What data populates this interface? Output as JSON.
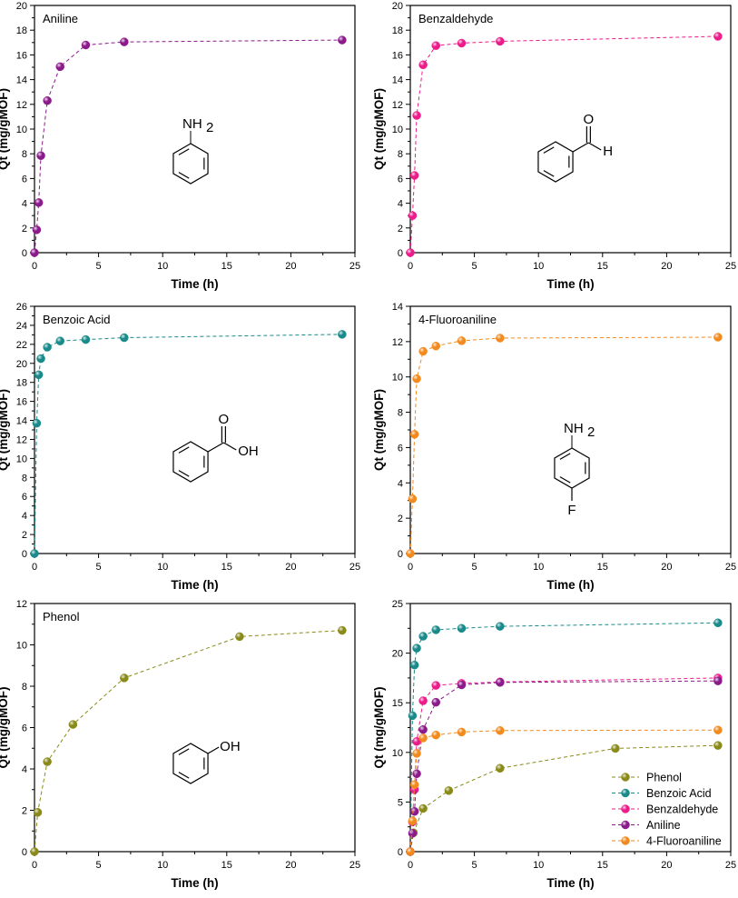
{
  "colors": {
    "Aniline": "#8b1a8b",
    "Benzaldehyde": "#ec1c8a",
    "Benzoic Acid": "#1a8a8a",
    "4-Fluoroaniline": "#f28a1e",
    "Phenol": "#8a8a1a"
  },
  "chart_data": [
    {
      "type": "scatter",
      "title": "Aniline",
      "xlabel": "Time (h)",
      "ylabel": "Qt (mg/gMOF)",
      "xlim": [
        0,
        25
      ],
      "ylim": [
        0,
        20
      ],
      "xticks": [
        0,
        5,
        10,
        15,
        20,
        25
      ],
      "yticks": [
        0,
        2,
        4,
        6,
        8,
        10,
        12,
        14,
        16,
        18,
        20
      ],
      "molecule": "aniline",
      "molecule_labels": [
        "NH",
        "2"
      ],
      "series": [
        {
          "name": "Aniline",
          "x": [
            0,
            0.17,
            0.33,
            0.5,
            1,
            2,
            4,
            7,
            24
          ],
          "y": [
            0,
            1.85,
            4.05,
            7.85,
            12.3,
            15.05,
            16.8,
            17.05,
            17.2
          ]
        }
      ]
    },
    {
      "type": "scatter",
      "title": "Benzaldehyde",
      "xlabel": "Time (h)",
      "ylabel": "Qt (mg/gMOF)",
      "xlim": [
        0,
        25
      ],
      "ylim": [
        0,
        20
      ],
      "xticks": [
        0,
        5,
        10,
        15,
        20,
        25
      ],
      "yticks": [
        0,
        2,
        4,
        6,
        8,
        10,
        12,
        14,
        16,
        18,
        20
      ],
      "molecule": "benzaldehyde",
      "molecule_labels": [
        "O",
        "H"
      ],
      "series": [
        {
          "name": "Benzaldehyde",
          "x": [
            0,
            0.17,
            0.33,
            0.5,
            1,
            2,
            4,
            7,
            24
          ],
          "y": [
            0,
            3.0,
            6.25,
            11.1,
            15.2,
            16.75,
            16.95,
            17.1,
            17.5
          ]
        }
      ]
    },
    {
      "type": "scatter",
      "title": "Benzoic Acid",
      "xlabel": "Time (h)",
      "ylabel": "Qt (mg/gMOF)",
      "xlim": [
        0,
        25
      ],
      "ylim": [
        0,
        26
      ],
      "xticks": [
        0,
        5,
        10,
        15,
        20,
        25
      ],
      "yticks": [
        0,
        2,
        4,
        6,
        8,
        10,
        12,
        14,
        16,
        18,
        20,
        22,
        24,
        26
      ],
      "molecule": "benzoic",
      "molecule_labels": [
        "O",
        "OH"
      ],
      "series": [
        {
          "name": "Benzoic Acid",
          "x": [
            0,
            0.17,
            0.33,
            0.5,
            1,
            2,
            4,
            7,
            24
          ],
          "y": [
            0,
            13.7,
            18.8,
            20.5,
            21.7,
            22.35,
            22.5,
            22.7,
            23.05
          ]
        }
      ]
    },
    {
      "type": "scatter",
      "title": "4-Fluoroaniline",
      "xlabel": "Time (h)",
      "ylabel": "Qt (mg/gMOF)",
      "xlim": [
        0,
        25
      ],
      "ylim": [
        0,
        14
      ],
      "xticks": [
        0,
        5,
        10,
        15,
        20,
        25
      ],
      "yticks": [
        0,
        2,
        4,
        6,
        8,
        10,
        12,
        14
      ],
      "molecule": "fluoroaniline",
      "molecule_labels": [
        "NH",
        "2",
        "F"
      ],
      "series": [
        {
          "name": "4-Fluoroaniline",
          "x": [
            0,
            0.17,
            0.33,
            0.5,
            1,
            2,
            4,
            7,
            24
          ],
          "y": [
            0,
            3.1,
            6.75,
            9.9,
            11.45,
            11.75,
            12.05,
            12.2,
            12.25
          ]
        }
      ]
    },
    {
      "type": "scatter",
      "title": "Phenol",
      "xlabel": "Time (h)",
      "ylabel": "Qt (mg/gMOF)",
      "xlim": [
        0,
        25
      ],
      "ylim": [
        0,
        12
      ],
      "xticks": [
        0,
        5,
        10,
        15,
        20,
        25
      ],
      "yticks": [
        0,
        2,
        4,
        6,
        8,
        10,
        12
      ],
      "molecule": "phenol",
      "molecule_labels": [
        "OH"
      ],
      "series": [
        {
          "name": "Phenol",
          "x": [
            0,
            0.25,
            1,
            3,
            7,
            16,
            24
          ],
          "y": [
            0,
            1.9,
            4.35,
            6.15,
            8.4,
            10.4,
            10.7
          ]
        }
      ]
    },
    {
      "type": "scatter",
      "title": "",
      "xlabel": "Time (h)",
      "ylabel": "Qt (mg/gMOF)",
      "xlim": [
        0,
        25
      ],
      "ylim": [
        0,
        25
      ],
      "xticks": [
        0,
        5,
        10,
        15,
        20,
        25
      ],
      "yticks": [
        0,
        5,
        10,
        15,
        20,
        25
      ],
      "legend": "bottom-right",
      "series": [
        {
          "name": "Phenol",
          "x": [
            0,
            0.25,
            1,
            3,
            7,
            16,
            24
          ],
          "y": [
            0,
            1.9,
            4.35,
            6.15,
            8.4,
            10.4,
            10.7
          ]
        },
        {
          "name": "Benzoic Acid",
          "x": [
            0,
            0.17,
            0.33,
            0.5,
            1,
            2,
            4,
            7,
            24
          ],
          "y": [
            0,
            13.7,
            18.8,
            20.5,
            21.7,
            22.35,
            22.5,
            22.7,
            23.05
          ]
        },
        {
          "name": "Benzaldehyde",
          "x": [
            0,
            0.17,
            0.33,
            0.5,
            1,
            2,
            4,
            7,
            24
          ],
          "y": [
            0,
            3.0,
            6.25,
            11.1,
            15.2,
            16.75,
            16.95,
            17.1,
            17.5
          ]
        },
        {
          "name": "Aniline",
          "x": [
            0,
            0.17,
            0.33,
            0.5,
            1,
            2,
            4,
            7,
            24
          ],
          "y": [
            0,
            1.85,
            4.05,
            7.85,
            12.3,
            15.05,
            16.8,
            17.05,
            17.2
          ]
        },
        {
          "name": "4-Fluoroaniline",
          "x": [
            0,
            0.17,
            0.33,
            0.5,
            1,
            2,
            4,
            7,
            24
          ],
          "y": [
            0,
            3.1,
            6.75,
            9.9,
            11.45,
            11.75,
            12.05,
            12.2,
            12.25
          ]
        }
      ]
    }
  ]
}
